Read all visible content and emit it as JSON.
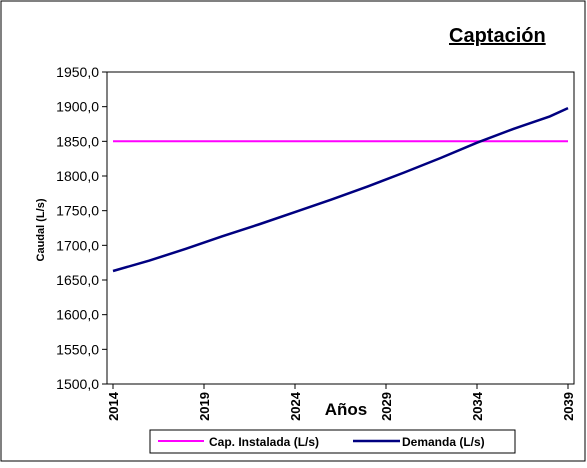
{
  "chart_data": {
    "type": "line",
    "title": "Captación",
    "xlabel": "Años",
    "ylabel": "Caudal (L/s)",
    "ylim": [
      1500,
      1950
    ],
    "y_ticks": [
      "1500,0",
      "1550,0",
      "1600,0",
      "1650,0",
      "1700,0",
      "1750,0",
      "1800,0",
      "1850,0",
      "1900,0",
      "1950,0"
    ],
    "x_range": [
      2014,
      2039
    ],
    "x_ticks": [
      "2014",
      "2019",
      "2024",
      "2029",
      "2034",
      "2039"
    ],
    "legend_position": "bottom",
    "grid": false,
    "series": [
      {
        "name": "Cap. Instalada (L/s)",
        "color": "#ff00ff",
        "x": [
          2014,
          2039
        ],
        "values": [
          1850,
          1850
        ]
      },
      {
        "name": "Demanda (L/s)",
        "color": "#000080",
        "x": [
          2014,
          2016,
          2018,
          2020,
          2022,
          2024,
          2026,
          2028,
          2030,
          2032,
          2034,
          2036,
          2038,
          2039
        ],
        "values": [
          1663,
          1678,
          1695,
          1713,
          1730,
          1748,
          1766,
          1785,
          1805,
          1826,
          1848,
          1868,
          1886,
          1898
        ]
      }
    ]
  }
}
